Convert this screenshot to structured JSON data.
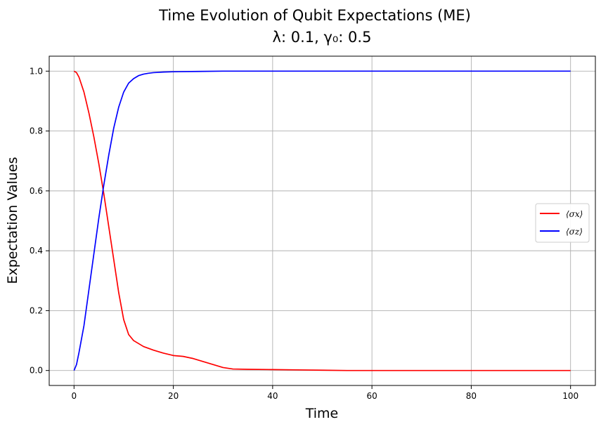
{
  "chart_data": {
    "type": "line",
    "title": "Time Evolution of Qubit Expectations (ME)",
    "subtitle": "λ: 0.1, γ₀: 0.5",
    "xlabel": "Time",
    "ylabel": "Expectation Values",
    "xlim": [
      -5,
      105
    ],
    "ylim": [
      -0.05,
      1.05
    ],
    "xticks": [
      0,
      20,
      40,
      60,
      80,
      100
    ],
    "yticks": [
      0.0,
      0.2,
      0.4,
      0.6,
      0.8,
      1.0
    ],
    "xtick_labels": [
      "0",
      "20",
      "40",
      "60",
      "80",
      "100"
    ],
    "ytick_labels": [
      "0.0",
      "0.2",
      "0.4",
      "0.6",
      "0.8",
      "1.0"
    ],
    "grid": true,
    "legend_position": "center-right",
    "series": [
      {
        "name": "⟨σx⟩",
        "color": "#ff0000",
        "x": [
          0,
          0.5,
          1,
          2,
          3,
          4,
          5,
          6,
          7,
          8,
          9,
          10,
          11,
          12,
          13,
          14,
          16,
          18,
          20,
          22,
          24,
          26,
          28,
          30,
          32,
          35,
          40,
          45,
          50,
          55,
          60,
          70,
          80,
          90,
          100
        ],
        "y": [
          1.0,
          0.995,
          0.98,
          0.93,
          0.86,
          0.78,
          0.69,
          0.59,
          0.48,
          0.37,
          0.26,
          0.17,
          0.12,
          0.1,
          0.09,
          0.08,
          0.068,
          0.058,
          0.05,
          0.047,
          0.04,
          0.03,
          0.02,
          0.01,
          0.005,
          0.004,
          0.003,
          0.002,
          0.001,
          0.0,
          0.0,
          0.0,
          0.0,
          0.0,
          0.0
        ]
      },
      {
        "name": "⟨σz⟩",
        "color": "#0000ff",
        "x": [
          0,
          0.5,
          1,
          2,
          3,
          4,
          5,
          6,
          7,
          8,
          9,
          10,
          11,
          12,
          13,
          14,
          15,
          16,
          18,
          20,
          25,
          30,
          40,
          50,
          60,
          70,
          80,
          90,
          100
        ],
        "y": [
          0.0,
          0.02,
          0.06,
          0.15,
          0.27,
          0.39,
          0.51,
          0.62,
          0.72,
          0.81,
          0.88,
          0.93,
          0.96,
          0.975,
          0.985,
          0.99,
          0.993,
          0.995,
          0.997,
          0.998,
          0.999,
          1.0,
          1.0,
          1.0,
          1.0,
          1.0,
          1.0,
          1.0,
          1.0
        ]
      }
    ]
  }
}
